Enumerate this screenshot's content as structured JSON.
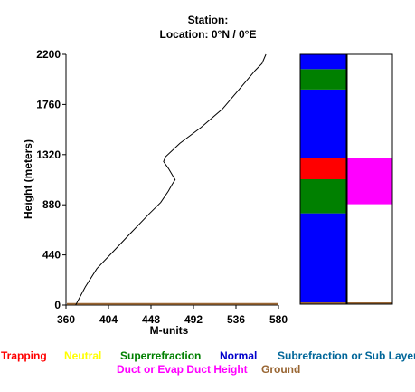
{
  "header": {
    "station_line": "Station:",
    "location_line": "Location:   0°N /   0°E"
  },
  "legend": {
    "row1": [
      {
        "label": "Trapping",
        "color": "#ff0000"
      },
      {
        "label": "Neutral",
        "color": "#ffff00"
      },
      {
        "label": "Superrefraction",
        "color": "#008000"
      },
      {
        "label": "Normal",
        "color": "#0000cc"
      },
      {
        "label": "Subrefraction or Sub Layer",
        "color": "#006699"
      }
    ],
    "row2": [
      {
        "label": "Duct or Evap Duct Height",
        "color": "#ff00ff"
      },
      {
        "label": "Ground",
        "color": "#996633"
      }
    ]
  },
  "chart_data": {
    "type": "line",
    "xlabel": "M-units",
    "ylabel": "Height (meters)",
    "xlim": [
      360,
      580
    ],
    "ylim": [
      0,
      2200
    ],
    "xticks": [
      "360",
      "404",
      "448",
      "492",
      "536",
      "580"
    ],
    "yticks": [
      "0",
      "440",
      "880",
      "1320",
      "1760",
      "2200"
    ],
    "series": [
      {
        "color": "#000000",
        "x": [
          370,
          380,
          392,
          410,
          428,
          446,
          458,
          466,
          470,
          473,
          466,
          461,
          463,
          478,
          500,
          522,
          540,
          556,
          563,
          567
        ],
        "y": [
          0,
          160,
          320,
          480,
          640,
          800,
          900,
          1000,
          1060,
          1100,
          1200,
          1260,
          1300,
          1420,
          1560,
          1720,
          1900,
          2060,
          2120,
          2200
        ]
      }
    ],
    "ground_line": {
      "y": 10,
      "color": "#996633"
    },
    "layer_bars": {
      "ylim": [
        0,
        2200
      ],
      "refractivity_column": [
        {
          "from": 0,
          "to": 800,
          "color": "#0000ff"
        },
        {
          "from": 800,
          "to": 1100,
          "color": "#008000"
        },
        {
          "from": 1100,
          "to": 1290,
          "color": "#ff0000"
        },
        {
          "from": 1290,
          "to": 1890,
          "color": "#0000ff"
        },
        {
          "from": 1890,
          "to": 2070,
          "color": "#008000"
        },
        {
          "from": 2070,
          "to": 2200,
          "color": "#0000ff"
        }
      ],
      "duct_column": [
        {
          "from": 880,
          "to": 1290,
          "color": "#ff00ff"
        }
      ]
    }
  }
}
